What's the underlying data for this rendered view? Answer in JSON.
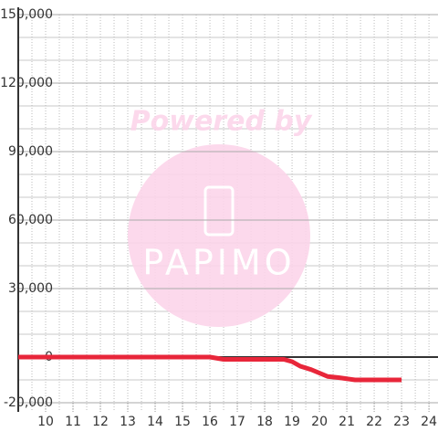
{
  "chart_data": {
    "type": "line",
    "watermark": {
      "line1": "Powered by",
      "line2": "PAPIMO"
    },
    "x": [
      9,
      16,
      16.5,
      18.7,
      19,
      19.3,
      19.7,
      20,
      20.3,
      20.7,
      21,
      21.3,
      23
    ],
    "series": [
      {
        "color": "#e8263a",
        "values": [
          0,
          0,
          -1000,
          -1000,
          -2000,
          -4000,
          -5500,
          -7000,
          -8500,
          -9000,
          -9500,
          -10000,
          -10000
        ]
      }
    ],
    "xlim": [
      9,
      24.33
    ],
    "xticks": [
      10,
      11,
      12,
      13,
      14,
      15,
      16,
      17,
      18,
      19,
      20,
      21,
      22,
      23,
      24
    ],
    "ylim": [
      -20000,
      150000
    ],
    "yticks": [
      {
        "value": -20000,
        "label": "-20,000"
      },
      0,
      {
        "value": 30000,
        "label": "30,000"
      },
      {
        "value": 60000,
        "label": "60,000"
      },
      {
        "value": 90000,
        "label": "90,000"
      },
      {
        "value": 120000,
        "label": "120,000"
      },
      {
        "value": 150000,
        "label": "150,000"
      }
    ],
    "y_minor_step": 10000,
    "x_minor_step": 0.5,
    "grid": true
  }
}
